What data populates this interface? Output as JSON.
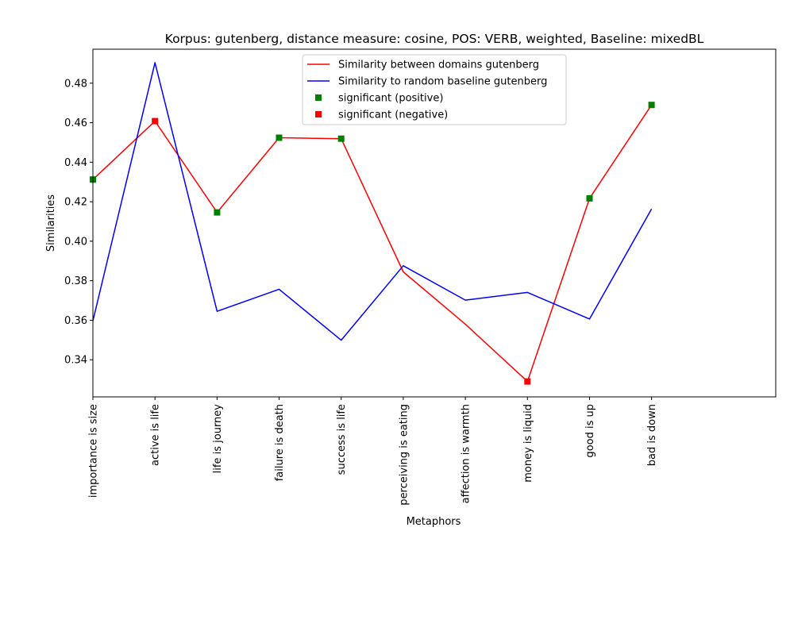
{
  "chart_data": {
    "type": "line",
    "title": "Korpus: gutenberg, distance measure: cosine, POS: VERB, weighted, Baseline: mixedBL",
    "xlabel": "Metaphors",
    "ylabel": "Similarities",
    "categories": [
      "importance is size",
      "active is life",
      "life is journey",
      "failure is death",
      "success is life",
      "perceiving is eating",
      "affection is warmth",
      "money is liquid",
      "good is up",
      "bad is down"
    ],
    "ylim": [
      0.3212,
      0.4972
    ],
    "yticks": [
      "0.34",
      "0.36",
      "0.38",
      "0.40",
      "0.42",
      "0.44",
      "0.46",
      "0.48"
    ],
    "x_slots": 11,
    "series": [
      {
        "name": "Similarity between domains gutenberg",
        "color": "#ff0000",
        "values": [
          0.4312,
          0.4608,
          0.4146,
          0.4524,
          0.4519,
          0.3845,
          0.358,
          0.329,
          0.4217,
          0.469
        ]
      },
      {
        "name": "Similarity to random baseline gutenberg",
        "color": "#0000ff",
        "values": [
          0.3597,
          0.4904,
          0.3645,
          0.3757,
          0.3499,
          0.3876,
          0.3702,
          0.3741,
          0.3606,
          0.4163
        ]
      }
    ],
    "markers": [
      {
        "name": "significant (positive)",
        "color": "#008000",
        "indices": [
          0,
          2,
          3,
          4,
          8,
          9
        ]
      },
      {
        "name": "significant (negative)",
        "color": "#ff0000",
        "indices": [
          1,
          7
        ]
      }
    ],
    "legend_position": "top-center",
    "grid": false
  }
}
